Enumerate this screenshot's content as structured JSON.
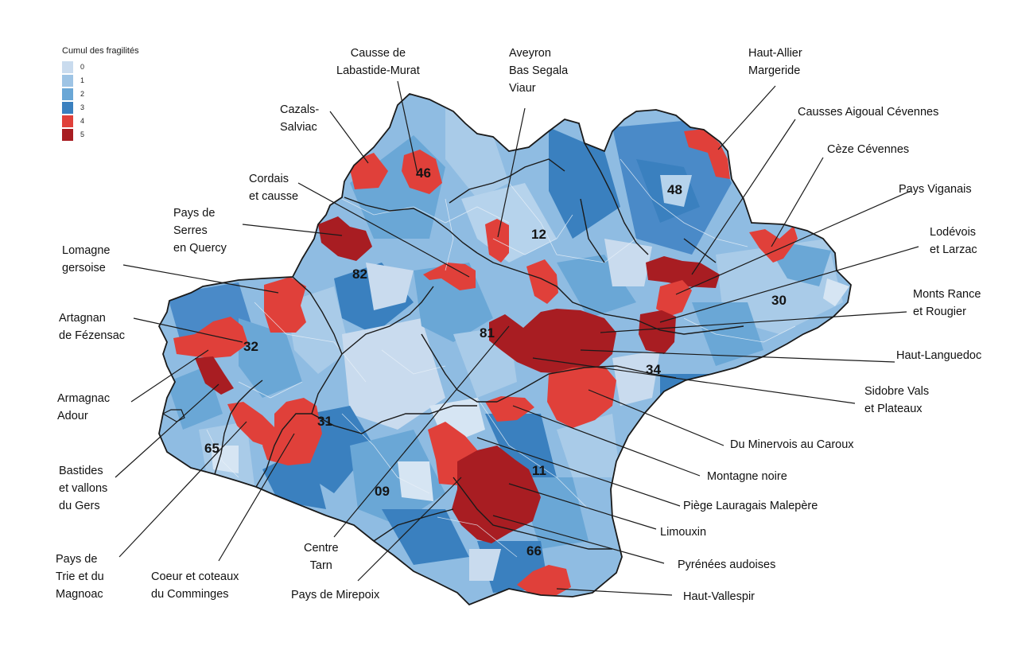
{
  "legend": {
    "title": "Cumul des fragilités",
    "items": [
      {
        "label": "0",
        "color": "#c9dbee"
      },
      {
        "label": "1",
        "color": "#9ec4e5"
      },
      {
        "label": "2",
        "color": "#6aa7d6"
      },
      {
        "label": "3",
        "color": "#3a80bf"
      },
      {
        "label": "4",
        "color": "#e0403a"
      },
      {
        "label": "5",
        "color": "#a81d22"
      }
    ]
  },
  "colors": {
    "blue_light": "#c9dbee",
    "blue_mid": "#8fbce2",
    "blue_dark": "#4a8ac8",
    "red": "#e0403a",
    "dark_red": "#a81d22",
    "outline": "#1a1a1a"
  },
  "departments": [
    "46",
    "12",
    "48",
    "82",
    "32",
    "81",
    "30",
    "34",
    "31",
    "65",
    "09",
    "11",
    "66"
  ],
  "territories": [
    "Causse de\nLabastide-Murat",
    "Aveyron\nBas Segala\nViaur",
    "Haut-Allier\nMargeride",
    "Cazals-\nSalviac",
    "Causses Aigoual Cévennes",
    "Cèze Cévennes",
    "Cordais\net causse",
    "Pays Viganais",
    "Pays de\nSerres\nen Quercy",
    "Lodévois\net Larzac",
    "Lomagne\ngersoise",
    "Monts Rance\net Rougier",
    "Artagnan\nde Fézensac",
    "Haut-Languedoc",
    "Armagnac\nAdour",
    "Sidobre Vals\net Plateaux",
    "Du Minervois au Caroux",
    "Bastides\net vallons\ndu Gers",
    "Montagne noire",
    "Piège Lauragais Malepère",
    "Limouxin",
    "Pays de\nTrie et du\nMagnoac",
    "Coeur et coteaux\ndu Comminges",
    "Centre\nTarn",
    "Pays de Mirepoix",
    "Pyrénées audoises",
    "Haut-Vallespir"
  ]
}
